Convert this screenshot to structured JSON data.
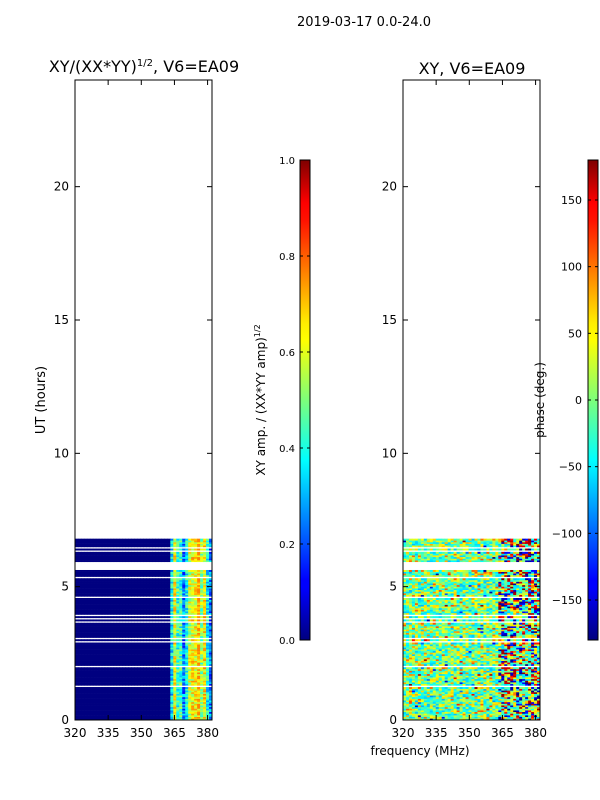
{
  "suptitle": "2019-03-17 0.0-24.0",
  "shared": {
    "xlabel": "frequency (MHz)",
    "ylabel": "UT (hours)",
    "x_ticks": [
      320,
      335,
      350,
      365,
      380
    ],
    "y_ticks": [
      0,
      5,
      10,
      15,
      20
    ],
    "xlim": [
      320,
      382
    ],
    "ylim": [
      0,
      24
    ],
    "data_ut_range": [
      0,
      6.8
    ]
  },
  "chart_data": [
    {
      "type": "heatmap",
      "title": "XY/(XX*YY)",
      "title_superscript": "1/2",
      "title_suffix": ", V6=EA09",
      "xlabel": "",
      "ylabel": "UT (hours)",
      "xlim": [
        320,
        382
      ],
      "ylim": [
        0,
        24
      ],
      "x_ticks": [
        320,
        335,
        350,
        365,
        380
      ],
      "y_ticks": [
        0,
        5,
        10,
        15,
        20
      ],
      "colormap": "jet",
      "colorbar": {
        "label": "XY amp. / (XX*YY amp)",
        "label_superscript": "1/2",
        "range": [
          0.0,
          1.0
        ],
        "ticks": [
          "0.0",
          "0.2",
          "0.4",
          "0.6",
          "0.8",
          "1.0"
        ]
      },
      "data_ut_range": [
        0,
        6.8
      ],
      "note": "values near 0 below 363 MHz; 0.2-0.7 above 363 MHz"
    },
    {
      "type": "heatmap",
      "title": "XY, V6=EA09",
      "xlabel": "frequency (MHz)",
      "ylabel": "",
      "xlim": [
        320,
        382
      ],
      "ylim": [
        0,
        24
      ],
      "x_ticks": [
        320,
        335,
        350,
        365,
        380
      ],
      "y_ticks": [
        0,
        5,
        10,
        15,
        20
      ],
      "colormap": "jet",
      "colorbar": {
        "label": "phase (deg.)",
        "range": [
          -180,
          180
        ],
        "ticks": [
          "−150",
          "−100",
          "−50",
          "0",
          "50",
          "100",
          "150"
        ]
      },
      "data_ut_range": [
        0,
        6.8
      ],
      "note": "phase scattered around 0 deg with red/blue excursions near 365-380 MHz"
    }
  ]
}
